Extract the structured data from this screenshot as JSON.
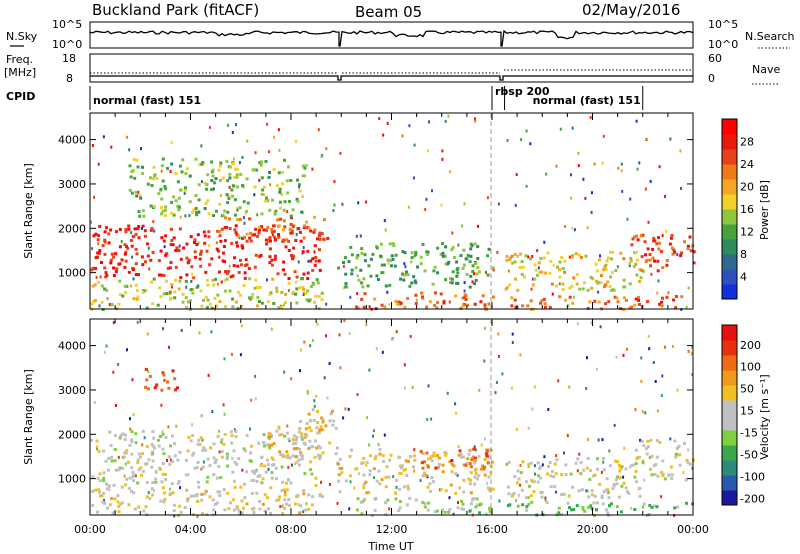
{
  "header": {
    "station": "Buckland Park (fitACF)",
    "beam": "Beam 05",
    "date": "02/May/2016"
  },
  "side_labels": {
    "nsky": "N.Sky",
    "nsky_hi": "10^5",
    "nsky_lo": "10^0",
    "nsearch": "N.Search",
    "nsearch_hi": "10^5",
    "nsearch_lo": "10^0",
    "freq_line1": "Freq.",
    "freq_line2": "[MHz]",
    "freq_hi": "18",
    "freq_lo": "8",
    "nave": "Nave",
    "nave_hi": "60",
    "nave_lo": "0",
    "cpid": "CPID"
  },
  "cpid_segments": [
    {
      "label": "normal (fast) 151",
      "start_hour": 0.0,
      "end_hour": 16.0
    },
    {
      "label": "rbsp 200",
      "start_hour": 16.0,
      "end_hour": 16.5
    },
    {
      "label": "normal (fast) 151",
      "start_hour": 16.5,
      "end_hour": 22.0
    }
  ],
  "chart_data": [
    {
      "type": "heatmap",
      "panel": "power",
      "xlabel": "",
      "ylabel": "Slant Range [km]",
      "xlim_hours": [
        0,
        24
      ],
      "ylim": [
        180,
        4600
      ],
      "yticks": [
        1000,
        2000,
        3000,
        4000
      ],
      "colorbar": {
        "label": "Power [dB]",
        "range": [
          0,
          32
        ],
        "ticks": [
          "4",
          "8",
          "12",
          "16",
          "20",
          "24",
          "28"
        ],
        "colors": [
          "#1030e0",
          "#3050c0",
          "#2e6a8e",
          "#2f8a5e",
          "#46a33c",
          "#8ec63f",
          "#f2d027",
          "#f5a623",
          "#f07a1a",
          "#e8401a",
          "#e81a10",
          "#ff0000"
        ]
      },
      "regions": [
        {
          "t0": 0.0,
          "t1": 9.2,
          "r0": 900,
          "r1": 2100,
          "level": 28
        },
        {
          "t0": 0.0,
          "t1": 9.2,
          "r0": 200,
          "r1": 900,
          "level": 16
        },
        {
          "t0": 5.0,
          "t1": 9.5,
          "r0": 1700,
          "r1": 2300,
          "level": 24
        },
        {
          "t0": 9.8,
          "t1": 16.0,
          "r0": 700,
          "r1": 1700,
          "level": 12
        },
        {
          "t0": 10.5,
          "t1": 16.0,
          "r0": 200,
          "r1": 600,
          "level": 24
        },
        {
          "t0": 16.5,
          "t1": 22.0,
          "r0": 600,
          "r1": 1500,
          "level": 18
        },
        {
          "t0": 16.5,
          "t1": 24.0,
          "r0": 200,
          "r1": 500,
          "level": 24
        },
        {
          "t0": 21.5,
          "t1": 24.0,
          "r0": 1000,
          "r1": 1900,
          "level": 26
        },
        {
          "t0": 1.5,
          "t1": 8.5,
          "r0": 2300,
          "r1": 3600,
          "level": 14
        }
      ]
    },
    {
      "type": "heatmap",
      "panel": "velocity",
      "xlabel": "Time UT",
      "ylabel": "Slant Range [km]",
      "xlim_hours": [
        0,
        24
      ],
      "xticks": [
        "00:00",
        "04:00",
        "08:00",
        "12:00",
        "16:00",
        "20:00",
        "00:00"
      ],
      "ylim": [
        180,
        4600
      ],
      "yticks": [
        1000,
        2000,
        3000,
        4000
      ],
      "colorbar": {
        "label": "Velocity [m s-1]",
        "range": [
          -250,
          250
        ],
        "ticks": [
          "200",
          "100",
          "50",
          "15",
          "-15",
          "-50",
          "-100",
          "-200"
        ],
        "colors": [
          "#1a1aa0",
          "#2a5ab0",
          "#2e8a7a",
          "#3aa84a",
          "#7ed03c",
          "#c0c0c0",
          "#c0c0c0",
          "#f0c020",
          "#f09a1a",
          "#f06a14",
          "#e83010",
          "#e81010"
        ]
      },
      "regions": [
        {
          "t0": 0.0,
          "t1": 9.2,
          "r0": 900,
          "r1": 2100,
          "level": 0
        },
        {
          "t0": 0.0,
          "t1": 9.2,
          "r0": 200,
          "r1": 900,
          "level": 30
        },
        {
          "t0": 7.0,
          "t1": 9.8,
          "r0": 1500,
          "r1": 2600,
          "level": 60
        },
        {
          "t0": 9.8,
          "t1": 16.0,
          "r0": 700,
          "r1": 1700,
          "level": 40
        },
        {
          "t0": 13.0,
          "t1": 16.0,
          "r0": 1200,
          "r1": 1700,
          "level": 150
        },
        {
          "t0": 10.5,
          "t1": 16.0,
          "r0": 200,
          "r1": 600,
          "level": -40
        },
        {
          "t0": 16.5,
          "t1": 22.0,
          "r0": 600,
          "r1": 1500,
          "level": 0
        },
        {
          "t0": 16.5,
          "t1": 24.0,
          "r0": 200,
          "r1": 500,
          "level": -60
        },
        {
          "t0": 21.5,
          "t1": 24.0,
          "r0": 1000,
          "r1": 1900,
          "level": 0
        },
        {
          "t0": 2.0,
          "t1": 3.5,
          "r0": 3000,
          "r1": 3500,
          "level": 180
        }
      ]
    }
  ],
  "power_colorbar_label": "Power [dB]",
  "velocity_colorbar_label": "Velocity [m s⁻¹]",
  "time_label": "Time UT",
  "range_label": "Slant Range [km]"
}
